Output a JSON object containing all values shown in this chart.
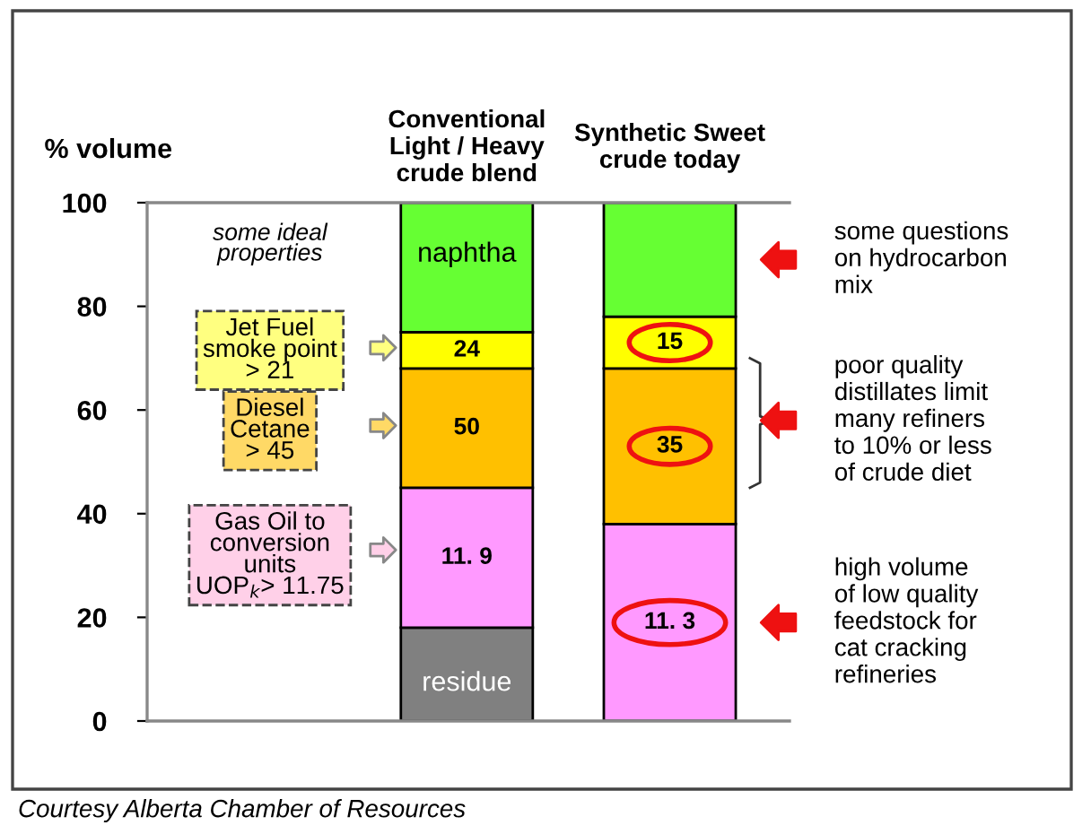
{
  "chart_data": {
    "type": "bar",
    "stacked": true,
    "categories": [
      "Conventional\nLight / Heavy\ncrude blend",
      "Synthetic Sweet\ncrude today"
    ],
    "ylabel": "% volume",
    "ylim": [
      0,
      100
    ],
    "yticks": [
      0,
      20,
      40,
      60,
      80,
      100
    ],
    "grid": false,
    "legend": false,
    "series": [
      {
        "name": "residue",
        "color": "#808080",
        "values": [
          18,
          null
        ]
      },
      {
        "color": "#ff99ff",
        "values": [
          27,
          38
        ]
      },
      {
        "color": "#ffc000",
        "values": [
          23,
          30
        ]
      },
      {
        "color": "#ffff00",
        "values": [
          7,
          10
        ]
      },
      {
        "name": "naphtha",
        "color": "#66ff33",
        "values": [
          25,
          22
        ]
      }
    ],
    "annotations": [
      "some ideal\nproperties",
      "Jet Fuel\nsmoke point\n> 21",
      "Diesel\nCetane\n> 45",
      "Gas Oil to\nconversion\nunits\nUOP$_{k}$> 11.75",
      "24",
      "50",
      "11. 9",
      "15",
      "35",
      "11. 3",
      "some questions\non hydrocarbon\nmix",
      "poor quality\ndistillates limit\nmany refiners\nto 10% or less\nof crude diet",
      "high volume\nof low quality\nfeedstock for\ncat cracking\nrefineries",
      "Courtesy Alberta Chamber of Resources"
    ]
  }
}
